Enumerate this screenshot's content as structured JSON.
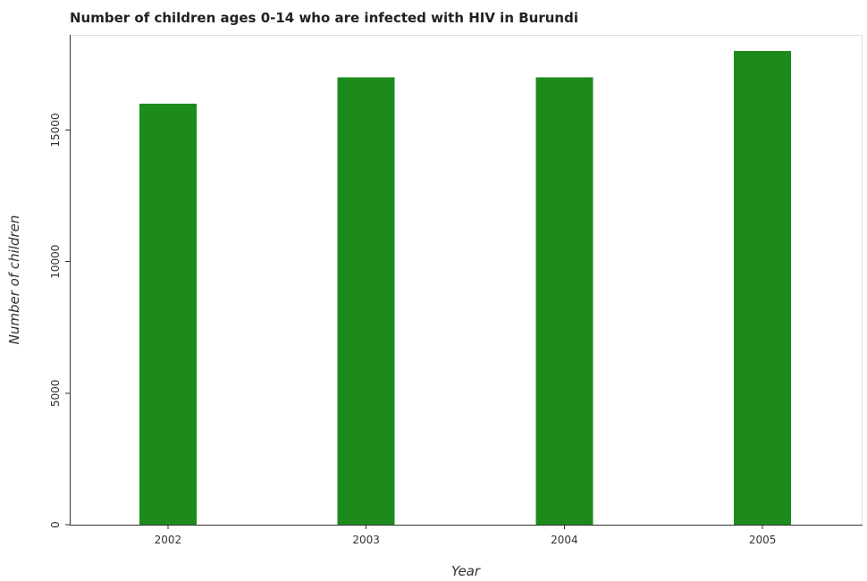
{
  "chart_data": {
    "type": "bar",
    "title": "Number of children ages 0-14 who are infected with HIV in Burundi",
    "xlabel": "Year",
    "ylabel": "Number of children",
    "categories": [
      "2002",
      "2003",
      "2004",
      "2005"
    ],
    "values": [
      16000,
      17000,
      17000,
      18000
    ],
    "ylim": [
      0,
      18000
    ],
    "yticks": [
      0,
      5000,
      10000,
      15000
    ],
    "ytick_labels": [
      "0",
      "5000",
      "10000",
      "15000"
    ],
    "grid": false,
    "legend": "none",
    "bar_color": "#1c8b1c"
  }
}
